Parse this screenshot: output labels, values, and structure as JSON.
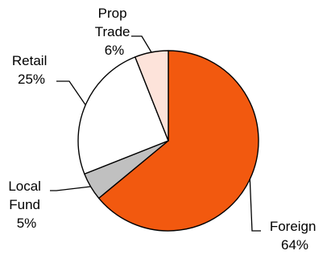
{
  "chart_data": {
    "type": "pie",
    "title": "",
    "slices": [
      {
        "label": "Foreign",
        "value": 64,
        "display": "64%",
        "color": "#F2590F"
      },
      {
        "label": "Local Fund",
        "value": 5,
        "display": "5%",
        "color": "#C0C0C0"
      },
      {
        "label": "Retail",
        "value": 25,
        "display": "25%",
        "color": "#FFFFFF"
      },
      {
        "label": "Prop Trade",
        "value": 6,
        "display": "6%",
        "color": "#FDE3DA"
      }
    ],
    "start": "12 o'clock",
    "direction": "clockwise",
    "legend": "none",
    "data_labels": "outside with leader lines"
  }
}
